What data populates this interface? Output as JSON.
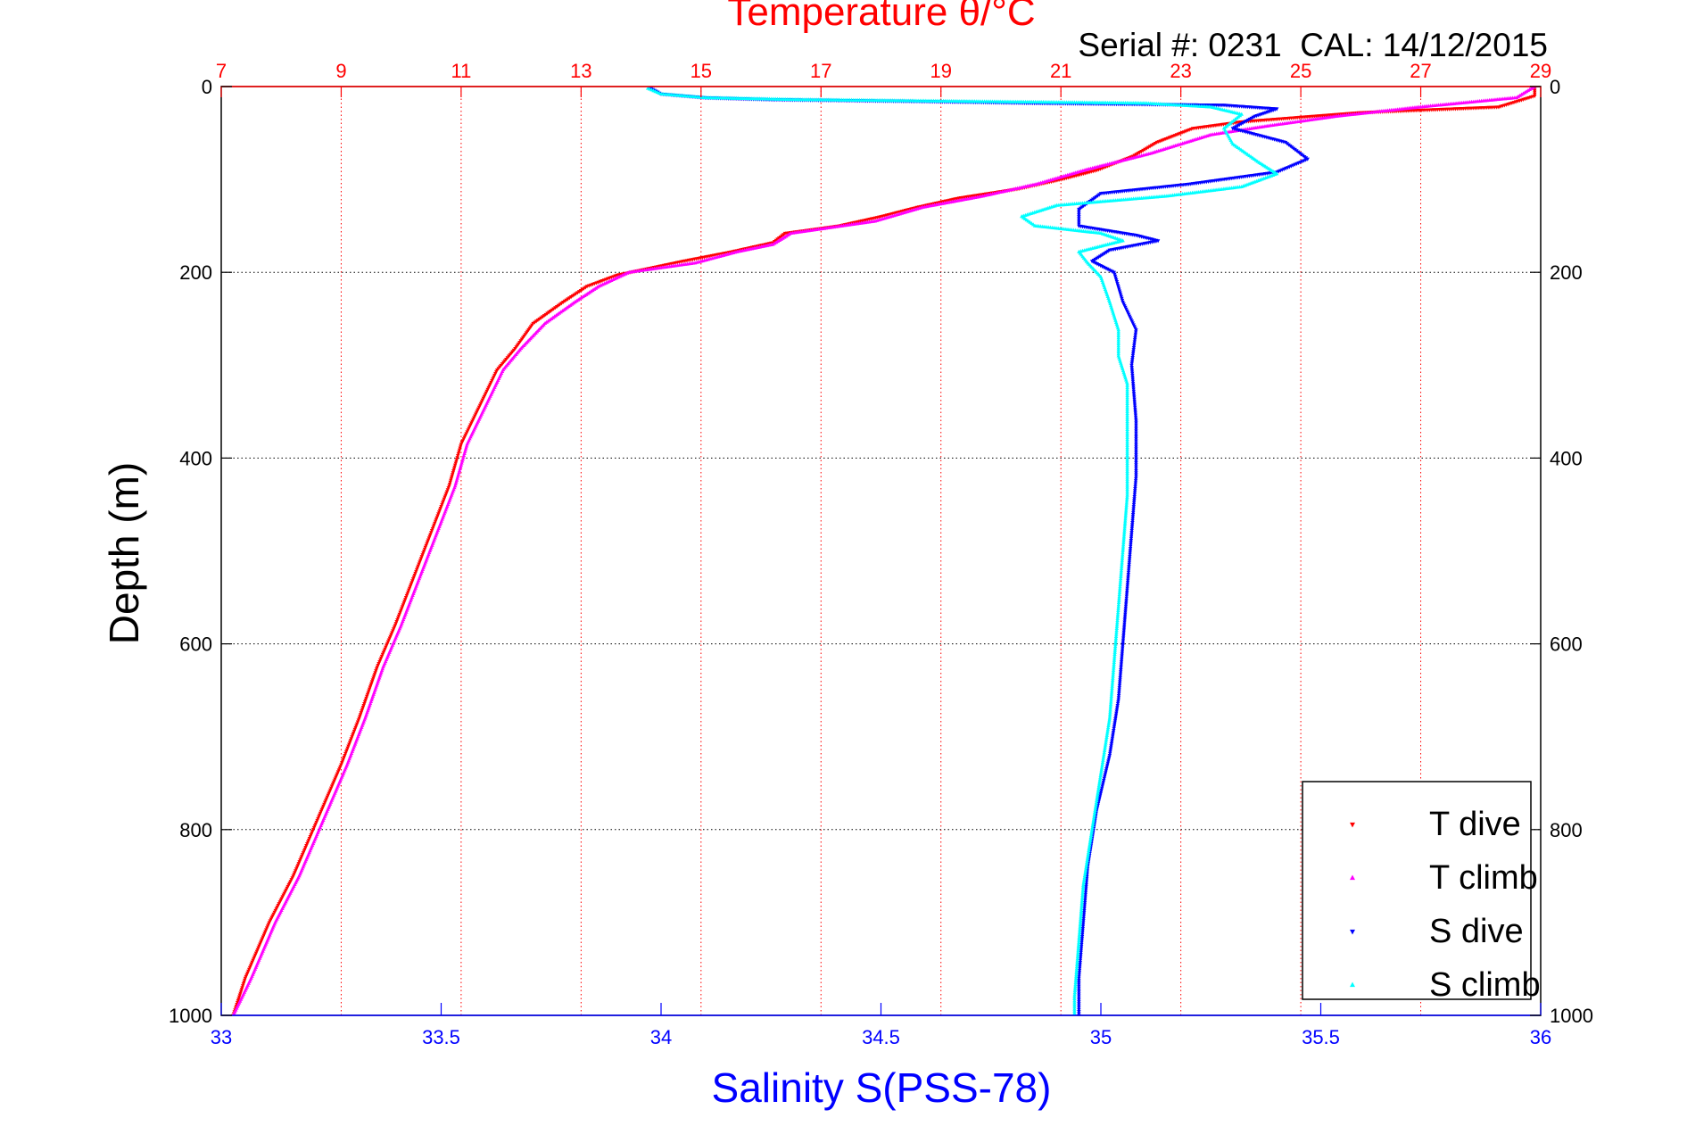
{
  "chart_data": {
    "type": "scatter",
    "top_axis": {
      "label": "Temperature θ/°C",
      "range": [
        7,
        29
      ],
      "ticks": [
        7,
        9,
        11,
        13,
        15,
        17,
        19,
        21,
        23,
        25,
        27,
        29
      ],
      "color": "#ff0000"
    },
    "bottom_axis": {
      "label": "Salinity S(PSS-78)",
      "range": [
        33,
        36
      ],
      "ticks": [
        33,
        33.5,
        34,
        34.5,
        35,
        35.5,
        36
      ],
      "color": "#0000ff"
    },
    "y_axis": {
      "label": "Depth (m)",
      "range": [
        0,
        1000
      ],
      "reversed": true,
      "ticks": [
        0,
        200,
        400,
        600,
        800,
        1000
      ]
    },
    "annotation": "Serial #: 0231  CAL: 14/12/2015",
    "grid": true,
    "legend_position": "bottom-right",
    "series": [
      {
        "name": "T dive",
        "axis": "temperature",
        "color": "#ff0000",
        "marker": "triangle-down",
        "points": [
          [
            28.9,
            0
          ],
          [
            28.9,
            10
          ],
          [
            28.3,
            22
          ],
          [
            26.0,
            28
          ],
          [
            25.2,
            32
          ],
          [
            24.0,
            38
          ],
          [
            23.2,
            45
          ],
          [
            22.6,
            60
          ],
          [
            22.2,
            75
          ],
          [
            21.6,
            90
          ],
          [
            21.0,
            100
          ],
          [
            20.3,
            110
          ],
          [
            19.3,
            120
          ],
          [
            18.6,
            130
          ],
          [
            18.0,
            140
          ],
          [
            17.3,
            150
          ],
          [
            16.4,
            158
          ],
          [
            16.2,
            168
          ],
          [
            15.5,
            178
          ],
          [
            14.7,
            188
          ],
          [
            13.6,
            203
          ],
          [
            13.1,
            215
          ],
          [
            12.7,
            232
          ],
          [
            12.2,
            255
          ],
          [
            11.9,
            282
          ],
          [
            11.6,
            305
          ],
          [
            11.3,
            345
          ],
          [
            11.0,
            385
          ],
          [
            10.8,
            430
          ],
          [
            10.5,
            480
          ],
          [
            10.2,
            530
          ],
          [
            9.9,
            580
          ],
          [
            9.6,
            625
          ],
          [
            9.3,
            680
          ],
          [
            9.0,
            730
          ],
          [
            8.6,
            790
          ],
          [
            8.2,
            850
          ],
          [
            7.8,
            900
          ],
          [
            7.4,
            960
          ],
          [
            7.2,
            1000
          ]
        ]
      },
      {
        "name": "T climb",
        "axis": "temperature",
        "color": "#ff00ff",
        "marker": "triangle-up",
        "points": [
          [
            28.9,
            0
          ],
          [
            28.6,
            12
          ],
          [
            27.0,
            22
          ],
          [
            25.6,
            32
          ],
          [
            24.5,
            42
          ],
          [
            23.5,
            52
          ],
          [
            22.5,
            72
          ],
          [
            21.4,
            90
          ],
          [
            20.6,
            105
          ],
          [
            19.7,
            118
          ],
          [
            18.7,
            130
          ],
          [
            17.9,
            145
          ],
          [
            16.5,
            158
          ],
          [
            16.2,
            170
          ],
          [
            15.6,
            178
          ],
          [
            14.9,
            190
          ],
          [
            13.8,
            200
          ],
          [
            13.3,
            215
          ],
          [
            12.9,
            232
          ],
          [
            12.4,
            255
          ],
          [
            12.0,
            282
          ],
          [
            11.7,
            305
          ],
          [
            11.4,
            345
          ],
          [
            11.1,
            385
          ],
          [
            10.9,
            430
          ],
          [
            10.6,
            480
          ],
          [
            10.3,
            530
          ],
          [
            10.0,
            580
          ],
          [
            9.7,
            625
          ],
          [
            9.4,
            680
          ],
          [
            9.1,
            730
          ],
          [
            8.7,
            790
          ],
          [
            8.3,
            850
          ],
          [
            7.9,
            900
          ],
          [
            7.5,
            960
          ],
          [
            7.2,
            1000
          ]
        ]
      },
      {
        "name": "S dive",
        "axis": "salinity",
        "color": "#0000ff",
        "marker": "triangle-down",
        "points": [
          [
            33.97,
            0
          ],
          [
            34.0,
            8
          ],
          [
            34.1,
            12
          ],
          [
            34.25,
            14
          ],
          [
            34.6,
            16
          ],
          [
            34.88,
            18
          ],
          [
            35.28,
            20
          ],
          [
            35.4,
            24
          ],
          [
            35.35,
            32
          ],
          [
            35.3,
            45
          ],
          [
            35.42,
            60
          ],
          [
            35.47,
            78
          ],
          [
            35.4,
            92
          ],
          [
            35.2,
            105
          ],
          [
            35.0,
            115
          ],
          [
            34.95,
            132
          ],
          [
            34.95,
            150
          ],
          [
            35.08,
            160
          ],
          [
            35.13,
            166
          ],
          [
            35.02,
            176
          ],
          [
            34.98,
            188
          ],
          [
            35.03,
            200
          ],
          [
            35.05,
            232
          ],
          [
            35.08,
            262
          ],
          [
            35.07,
            300
          ],
          [
            35.08,
            360
          ],
          [
            35.08,
            420
          ],
          [
            35.07,
            480
          ],
          [
            35.06,
            540
          ],
          [
            35.05,
            600
          ],
          [
            35.04,
            660
          ],
          [
            35.02,
            720
          ],
          [
            34.99,
            780
          ],
          [
            34.97,
            840
          ],
          [
            34.96,
            900
          ],
          [
            34.95,
            960
          ],
          [
            34.95,
            1000
          ]
        ]
      },
      {
        "name": "S climb",
        "axis": "salinity",
        "color": "#00ffff",
        "marker": "triangle-up",
        "points": [
          [
            33.97,
            2
          ],
          [
            34.0,
            8
          ],
          [
            34.1,
            12
          ],
          [
            34.3,
            14
          ],
          [
            34.7,
            16
          ],
          [
            35.1,
            18
          ],
          [
            35.25,
            22
          ],
          [
            35.32,
            30
          ],
          [
            35.28,
            45
          ],
          [
            35.3,
            62
          ],
          [
            35.36,
            82
          ],
          [
            35.4,
            94
          ],
          [
            35.32,
            108
          ],
          [
            35.15,
            118
          ],
          [
            34.9,
            128
          ],
          [
            34.82,
            140
          ],
          [
            34.85,
            150
          ],
          [
            35.0,
            158
          ],
          [
            35.05,
            166
          ],
          [
            34.95,
            178
          ],
          [
            34.97,
            190
          ],
          [
            35.0,
            205
          ],
          [
            35.02,
            232
          ],
          [
            35.04,
            262
          ],
          [
            35.04,
            290
          ],
          [
            35.06,
            320
          ],
          [
            35.06,
            380
          ],
          [
            35.06,
            440
          ],
          [
            35.05,
            500
          ],
          [
            35.04,
            560
          ],
          [
            35.03,
            620
          ],
          [
            35.02,
            680
          ],
          [
            35.0,
            740
          ],
          [
            34.98,
            800
          ],
          [
            34.96,
            860
          ],
          [
            34.95,
            920
          ],
          [
            34.94,
            980
          ],
          [
            34.94,
            1000
          ]
        ]
      }
    ]
  }
}
